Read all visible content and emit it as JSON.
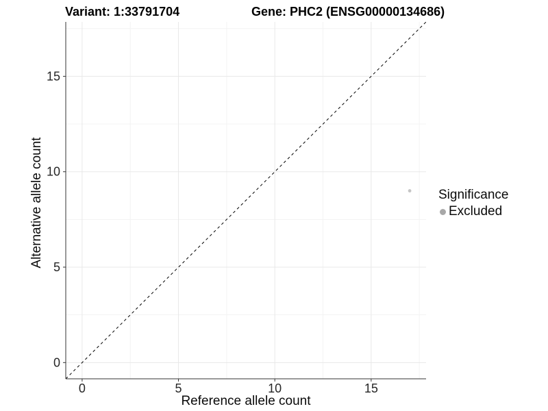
{
  "titles": {
    "variant": "Variant: 1:33791704",
    "gene": "Gene: PHC2 (ENSG00000134686)"
  },
  "chart_data": {
    "type": "scatter",
    "title": "Variant: 1:33791704   Gene: PHC2 (ENSG00000134686)",
    "xlabel": "Reference allele count",
    "ylabel": "Alternative allele count",
    "xlim": [
      -0.85,
      17.85
    ],
    "ylim": [
      -0.85,
      17.85
    ],
    "x_ticks": [
      0,
      5,
      10,
      15
    ],
    "y_ticks": [
      0,
      5,
      10,
      15
    ],
    "x_minor_ticks": [
      2.5,
      7.5,
      12.5,
      17.5
    ],
    "y_minor_ticks": [
      2.5,
      7.5,
      12.5,
      17.5
    ],
    "grid": true,
    "reference_line": {
      "kind": "identity",
      "style": "dashed",
      "color": "#000000"
    },
    "series": [
      {
        "name": "Excluded",
        "color": "#c5c5c5",
        "points": [
          {
            "x": 17,
            "y": 9
          }
        ]
      }
    ],
    "legend": {
      "title": "Significance",
      "position": "right",
      "entries": [
        {
          "label": "Excluded",
          "color": "#a8a8a8"
        }
      ]
    },
    "colors": {
      "grid_major": "#e8e8e8",
      "grid_minor": "#f3f3f3",
      "axis_line": "#333333",
      "tick_text": "#262626",
      "diagonal": "#000000"
    }
  }
}
